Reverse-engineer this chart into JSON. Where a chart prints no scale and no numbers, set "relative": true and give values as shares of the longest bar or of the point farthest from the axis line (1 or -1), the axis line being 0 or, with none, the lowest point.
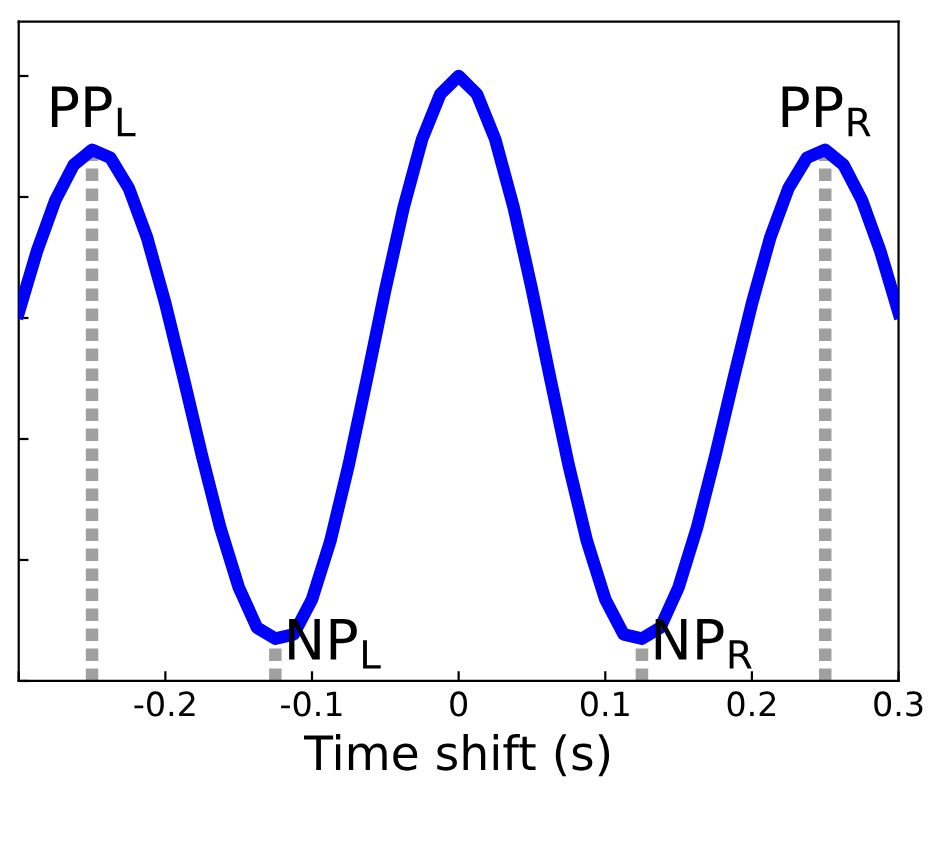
{
  "chart_data": {
    "type": "line",
    "relative": true,
    "xlabel": "Time shift (s)",
    "x": [
      -0.3,
      -0.2875,
      -0.275,
      -0.2625,
      -0.25,
      -0.2375,
      -0.225,
      -0.2125,
      -0.2,
      -0.1875,
      -0.175,
      -0.1625,
      -0.15,
      -0.1375,
      -0.125,
      -0.1125,
      -0.1,
      -0.0875,
      -0.075,
      -0.0625,
      -0.05,
      -0.0375,
      -0.025,
      -0.0125,
      0,
      0.0125,
      0.025,
      0.0375,
      0.05,
      0.0625,
      0.075,
      0.0875,
      0.1,
      0.1125,
      0.125,
      0.1375,
      0.15,
      0.1625,
      0.175,
      0.1875,
      0.2,
      0.2125,
      0.225,
      0.2375,
      0.25,
      0.2625,
      0.275,
      0.2875,
      0.3
    ],
    "series": [
      {
        "color": "#0000ff",
        "values": [
          0.609,
          0.711,
          0.795,
          0.853,
          0.878,
          0.865,
          0.815,
          0.733,
          0.624,
          0.5,
          0.372,
          0.253,
          0.155,
          0.088,
          0.07,
          0.077,
          0.135,
          0.231,
          0.357,
          0.5,
          0.647,
          0.783,
          0.895,
          0.97,
          1.0,
          0.97,
          0.895,
          0.783,
          0.647,
          0.5,
          0.357,
          0.231,
          0.135,
          0.077,
          0.07,
          0.088,
          0.155,
          0.253,
          0.372,
          0.5,
          0.624,
          0.733,
          0.815,
          0.865,
          0.878,
          0.853,
          0.795,
          0.711,
          0.609
        ]
      },
      {
        "x": [
          -0.25,
          -0.25
        ],
        "values": [
          0,
          0.878
        ],
        "color": "#a0a0a0",
        "line_style": "dotted"
      },
      {
        "x": [
          -0.125,
          -0.125
        ],
        "values": [
          0,
          0.07
        ],
        "color": "#a0a0a0",
        "line_style": "dotted"
      },
      {
        "x": [
          0.125,
          0.125
        ],
        "values": [
          0,
          0.07
        ],
        "color": "#a0a0a0",
        "line_style": "dotted"
      },
      {
        "x": [
          0.25,
          0.25
        ],
        "values": [
          0,
          0.878
        ],
        "color": "#a0a0a0",
        "line_style": "dotted"
      }
    ],
    "xlim": [
      -0.3,
      0.3
    ],
    "xticks": [
      {
        "value": -0.3,
        "label": null
      },
      {
        "value": -0.2,
        "label": "-0.2"
      },
      {
        "value": -0.1,
        "label": "-0.1"
      },
      0,
      0.1,
      0.2,
      0.3
    ],
    "tick_labels": "x",
    "grid": false,
    "legend": false,
    "marker": "none",
    "line_style": "solid",
    "annotations": [
      {
        "text": "PP$_{L}$",
        "x": -0.25,
        "y": 0.878
      },
      {
        "text": "NP$_{L}$",
        "x": -0.125,
        "y": 0.07
      },
      {
        "text": "NP$_{R}$",
        "x": 0.125,
        "y": 0.07
      },
      {
        "text": "PP$_{R}$",
        "x": 0.25,
        "y": 0.878
      }
    ]
  }
}
